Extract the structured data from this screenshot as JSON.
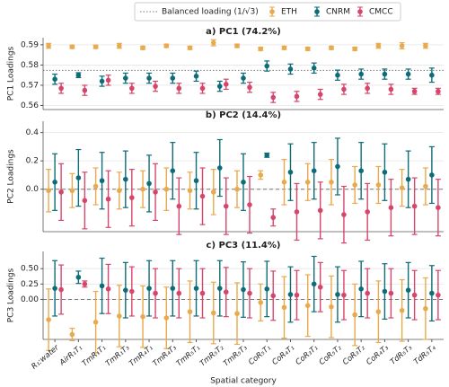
{
  "chart_data": [
    {
      "type": "errorbar",
      "title": "a) PC1 (74.2%)",
      "ylabel": "PC1 Loadings",
      "ylim": [
        0.558,
        0.5935
      ],
      "yticks": [
        0.56,
        0.57,
        0.58,
        0.59
      ],
      "grid": true,
      "reference_line": {
        "label": "Balanced loading (1/√3)",
        "value": 0.57735,
        "style": "dotted"
      },
      "series": [
        {
          "name": "ETH",
          "color": "#e8aa4c",
          "values": [
            0.5895,
            0.589,
            0.589,
            0.5895,
            0.5885,
            0.5895,
            0.5885,
            0.591,
            0.5895,
            0.588,
            0.5885,
            0.588,
            0.5885,
            0.588,
            0.5895,
            0.5895,
            0.5895
          ],
          "errors": [
            0.0012,
            0.0008,
            0.0008,
            0.0012,
            0.0008,
            0.0008,
            0.0008,
            0.0015,
            0.0008,
            0.0008,
            0.0008,
            0.0008,
            0.0008,
            0.0008,
            0.0012,
            0.0015,
            0.0012
          ]
        },
        {
          "name": "CNRM",
          "color": "#0e6c78",
          "values": [
            0.573,
            0.575,
            0.572,
            0.5735,
            0.5735,
            0.5735,
            0.5745,
            0.5695,
            0.5735,
            0.5795,
            0.578,
            0.5785,
            0.575,
            0.5755,
            0.5755,
            0.5755,
            0.575
          ],
          "errors": [
            0.0025,
            0.0012,
            0.0025,
            0.0025,
            0.0025,
            0.0025,
            0.0025,
            0.0025,
            0.0025,
            0.0025,
            0.0025,
            0.0025,
            0.0025,
            0.0025,
            0.0025,
            0.0025,
            0.0035
          ]
        },
        {
          "name": "CMCC",
          "color": "#d6466c",
          "values": [
            0.5685,
            0.5675,
            0.5725,
            0.5685,
            0.5695,
            0.5685,
            0.5685,
            0.5705,
            0.569,
            0.564,
            0.5645,
            0.5655,
            0.568,
            0.5685,
            0.568,
            0.567,
            0.567
          ],
          "errors": [
            0.0025,
            0.0025,
            0.0025,
            0.0025,
            0.0025,
            0.0025,
            0.0025,
            0.0025,
            0.0025,
            0.0025,
            0.0025,
            0.0025,
            0.0025,
            0.0025,
            0.0025,
            0.0015,
            0.0015
          ]
        }
      ]
    },
    {
      "type": "errorbar",
      "title": "b) PC2 (14.4%)",
      "ylabel": "PC2 Loadings",
      "ylim": [
        -0.3,
        0.48
      ],
      "yticks": [
        {
          "value": 0,
          "label": "0.0"
        },
        0.2,
        0.4
      ],
      "grid": true,
      "reference_line": {
        "value": 0,
        "style": "dashed"
      },
      "series": [
        {
          "color": "#e8aa4c",
          "values": [
            -0.01,
            -0.01,
            0.02,
            -0.01,
            0.0,
            0.0,
            -0.01,
            -0.02,
            0.0,
            0.1,
            0.05,
            0.05,
            0.05,
            0.03,
            0.03,
            0.01,
            0.02
          ],
          "errors": [
            0.15,
            0.12,
            0.13,
            0.13,
            0.13,
            0.15,
            0.13,
            0.16,
            0.13,
            0.03,
            0.16,
            0.13,
            0.16,
            0.13,
            0.13,
            0.13,
            0.13
          ]
        },
        {
          "color": "#0e6c78",
          "values": [
            0.05,
            0.08,
            0.06,
            0.07,
            0.04,
            0.13,
            0.06,
            0.15,
            0.05,
            0.24,
            0.12,
            0.13,
            0.16,
            0.13,
            0.12,
            0.07,
            0.1
          ],
          "errors": [
            0.2,
            0.2,
            0.2,
            0.2,
            0.2,
            0.2,
            0.2,
            0.2,
            0.2,
            0.015,
            0.2,
            0.2,
            0.2,
            0.2,
            0.2,
            0.2,
            0.2
          ]
        },
        {
          "color": "#d6466c",
          "values": [
            -0.02,
            -0.08,
            -0.07,
            -0.06,
            -0.02,
            -0.12,
            -0.05,
            -0.12,
            -0.11,
            -0.2,
            -0.16,
            -0.15,
            -0.18,
            -0.16,
            -0.13,
            -0.12,
            -0.13
          ],
          "errors": [
            0.2,
            0.2,
            0.2,
            0.2,
            0.2,
            0.2,
            0.2,
            0.2,
            0.2,
            0.06,
            0.2,
            0.2,
            0.2,
            0.2,
            0.2,
            0.2,
            0.2
          ]
        }
      ]
    },
    {
      "type": "errorbar",
      "title": "c) PC3 (11.4%)",
      "ylabel": "PC3 Loadings",
      "xlabel": "Spatial category",
      "categories": [
        "R₁:water",
        "AirR₁T₁",
        "TmR₁T₁",
        "TmR₁T₃",
        "TmR₄T₁",
        "TmR₄T₃",
        "TmR₅T₁",
        "TmR₅T₂",
        "TmR₅T₃",
        "CoR₅T₁",
        "CoR₄T₁",
        "CoR₃T₁",
        "CoR₅T₂",
        "CoR₃T₂",
        "CoR₄T₃",
        "TdR₅T₃",
        "TdR₅T₄"
      ],
      "ylim": [
        -0.65,
        0.78
      ],
      "yticks": [
        {
          "value": 0,
          "label": "0.00"
        },
        0.25,
        {
          "value": 0.5,
          "label": "0.50"
        }
      ],
      "grid": true,
      "reference_line": {
        "value": 0,
        "style": "dashed"
      },
      "series": [
        {
          "color": "#e8aa4c",
          "values": [
            -0.33,
            -0.57,
            -0.37,
            -0.27,
            -0.28,
            -0.3,
            -0.2,
            -0.22,
            -0.23,
            -0.05,
            -0.13,
            -0.1,
            -0.12,
            -0.25,
            -0.2,
            -0.18,
            -0.15
          ],
          "errors": [
            0.5,
            0.1,
            0.5,
            0.5,
            0.5,
            0.5,
            0.5,
            0.5,
            0.5,
            0.3,
            0.5,
            0.5,
            0.5,
            0.5,
            0.5,
            0.5,
            0.5
          ]
        },
        {
          "color": "#0e6c78",
          "values": [
            0.18,
            0.36,
            0.22,
            0.15,
            0.18,
            0.18,
            0.18,
            0.18,
            0.16,
            0.17,
            0.08,
            0.25,
            0.08,
            0.17,
            0.13,
            0.15,
            0.1
          ],
          "errors": [
            0.45,
            0.1,
            0.45,
            0.45,
            0.45,
            0.45,
            0.45,
            0.45,
            0.45,
            0.45,
            0.45,
            0.45,
            0.45,
            0.45,
            0.45,
            0.45,
            0.45
          ]
        },
        {
          "color": "#d6466c",
          "values": [
            0.16,
            0.25,
            0.17,
            0.13,
            0.1,
            0.1,
            0.1,
            0.12,
            0.1,
            0.06,
            0.07,
            0.2,
            0.07,
            0.1,
            0.1,
            0.07,
            0.07
          ],
          "errors": [
            0.4,
            0.05,
            0.4,
            0.4,
            0.4,
            0.4,
            0.4,
            0.4,
            0.4,
            0.4,
            0.4,
            0.4,
            0.4,
            0.4,
            0.4,
            0.4,
            0.4
          ]
        }
      ]
    }
  ]
}
